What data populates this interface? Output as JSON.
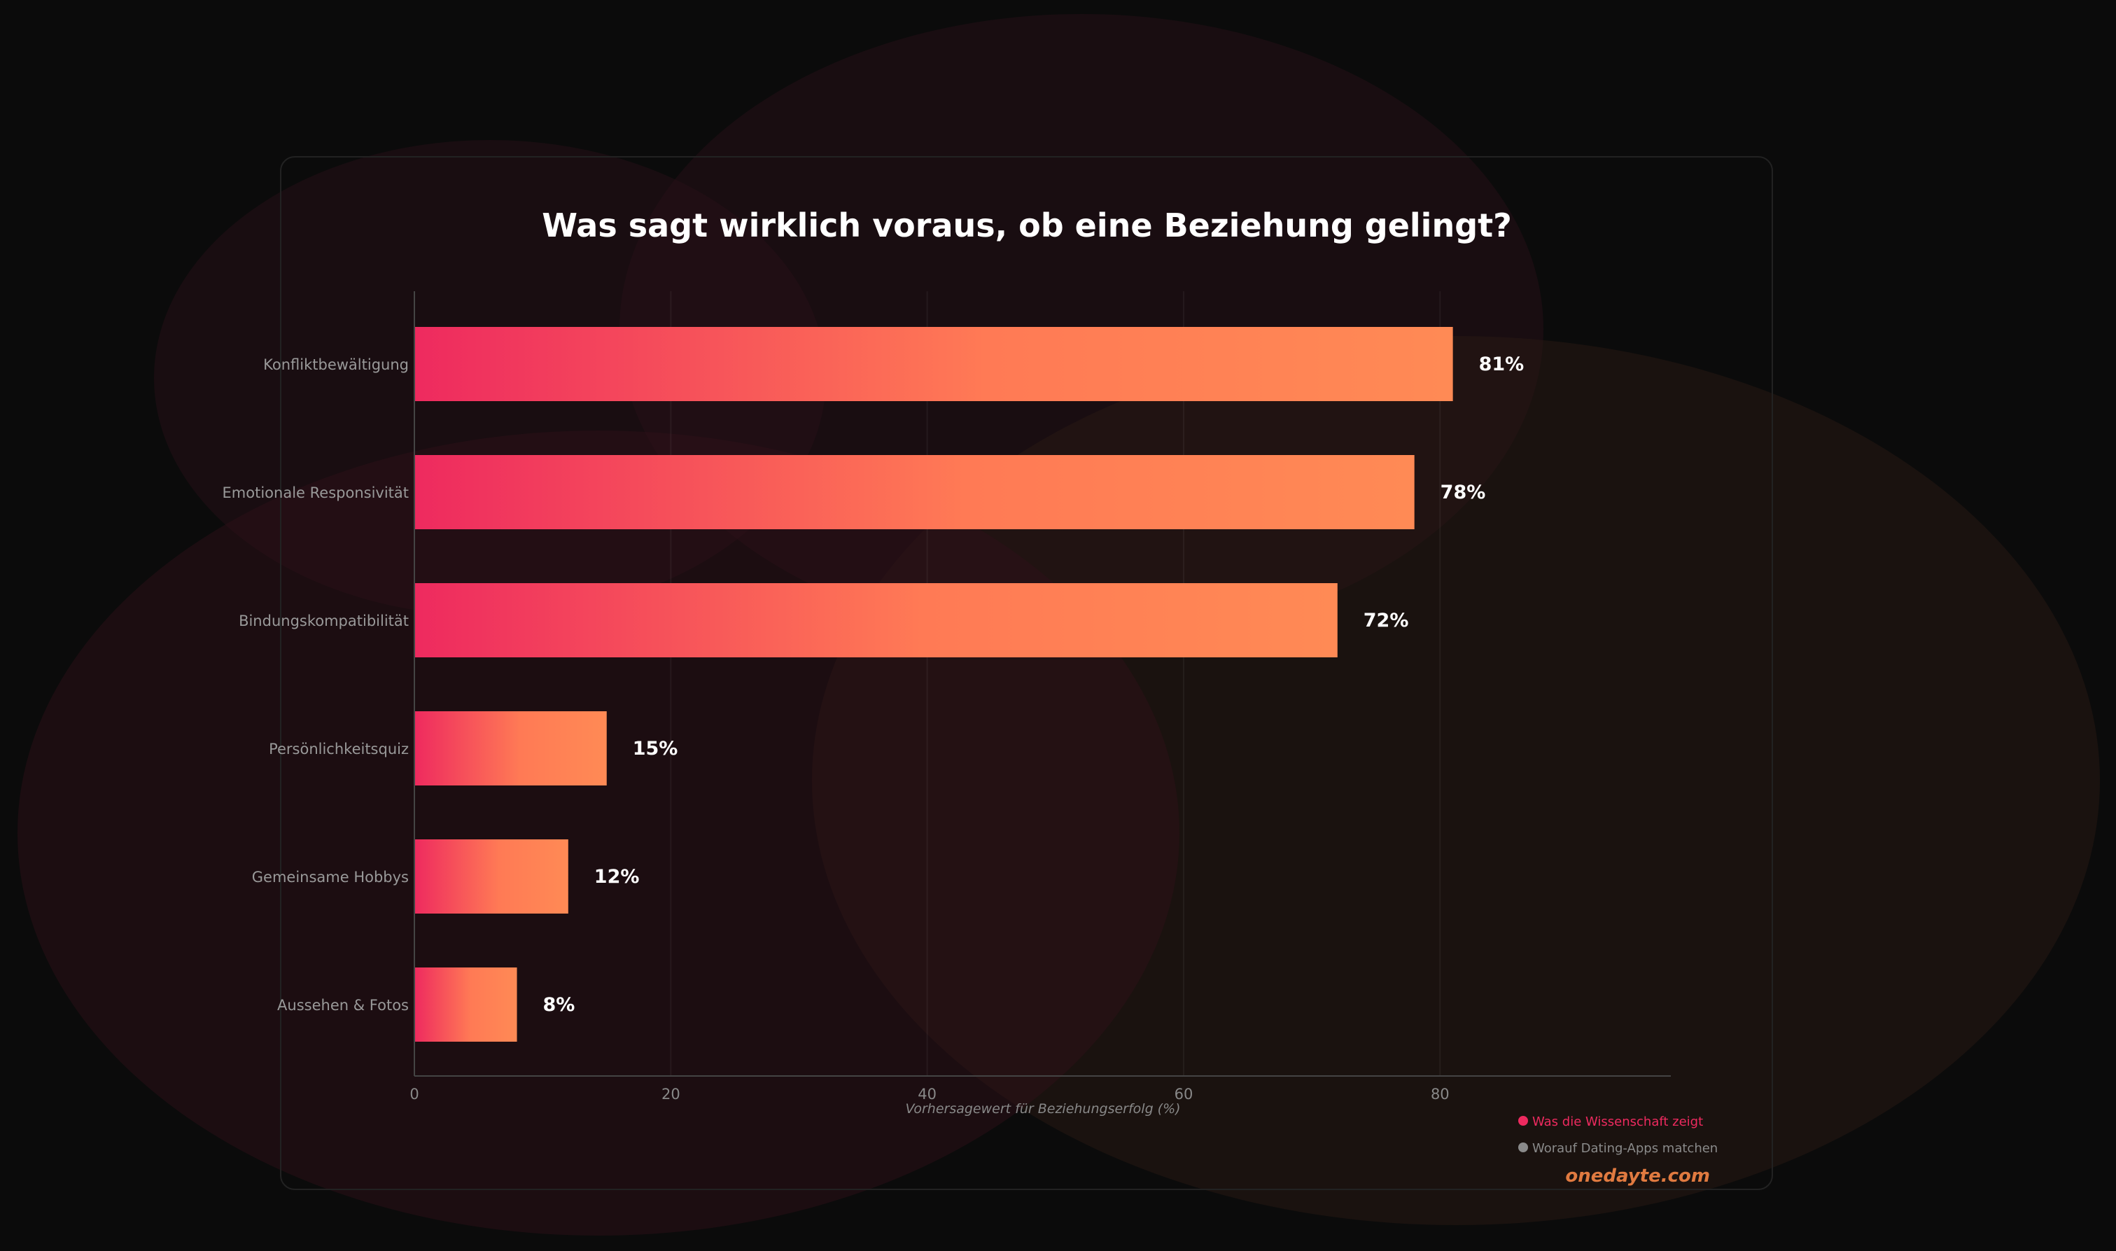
{
  "chart_data": {
    "type": "bar",
    "orientation": "horizontal",
    "title": "Was sagt wirklich voraus, ob eine Beziehung gelingt?",
    "xlabel": "Vorhersagewert für Beziehungserfolg (%)",
    "ylabel": "",
    "categories": [
      "Konfliktbewältigung",
      "Emotionale Responsivität",
      "Bindungskompatibilität",
      "Persönlichkeitsquiz",
      "Gemeinsame Hobbys",
      "Aussehen & Fotos"
    ],
    "values": [
      81,
      78,
      72,
      15,
      12,
      8
    ],
    "value_labels": [
      "81%",
      "78%",
      "72%",
      "15%",
      "12%",
      "8%"
    ],
    "xlim": [
      0,
      98
    ],
    "xticks": [
      0,
      20,
      40,
      60,
      80
    ],
    "xtick_labels": [
      "0",
      "20",
      "40",
      "60",
      "80"
    ],
    "grid": "vertical",
    "legend_position": "bottom-right",
    "legend": [
      {
        "label": "Was die Wissenschaft zeigt",
        "color": "#ee2a5f"
      },
      {
        "label": "Worauf Dating-Apps matchen",
        "color": "#8a8a8a"
      }
    ],
    "bar_gradient": [
      "#ee2a5f",
      "#ff8a55"
    ]
  },
  "watermark": "onedayte.com",
  "colors": {
    "background": "#0b0b0b",
    "watermark": "#e07a40",
    "text": "#ffffff",
    "label": "#999999"
  }
}
